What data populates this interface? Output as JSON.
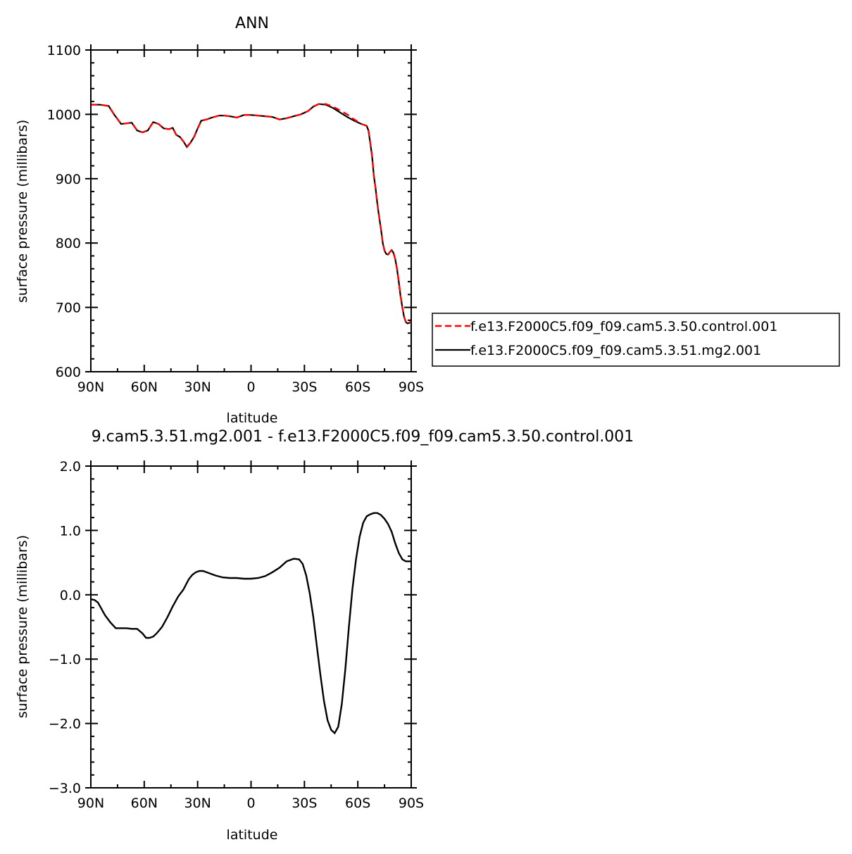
{
  "chart_data": [
    {
      "type": "line",
      "title": "ANN",
      "xlabel": "latitude",
      "ylabel": "surface pressure (millibars)",
      "xlim": [
        -90,
        90
      ],
      "ylim": [
        600,
        1100
      ],
      "xticks": [
        -90,
        -60,
        -30,
        0,
        30,
        60,
        90
      ],
      "xtick_labels": [
        "90N",
        "60N",
        "30N",
        "0",
        "30S",
        "60S",
        "90S"
      ],
      "yticks": [
        600,
        700,
        800,
        900,
        1000,
        1100
      ],
      "ytick_labels": [
        "600",
        "700",
        "800",
        "900",
        "1000",
        "1100"
      ],
      "legend_position": "right",
      "series": [
        {
          "name": "f.e13.F2000C5.f09_f09.cam5.3.50.control.001",
          "color": "#ff0000",
          "dash": "dashed",
          "x": [
            -90,
            -85,
            -80,
            -77,
            -73,
            -70,
            -67,
            -64,
            -61,
            -58,
            -55,
            -52,
            -49,
            -46,
            -44,
            -42,
            -40,
            -38,
            -36,
            -34,
            -32,
            -30,
            -28,
            -25,
            -22,
            -18,
            -15,
            -12,
            -8,
            -4,
            0,
            4,
            8,
            12,
            16,
            20,
            24,
            28,
            32,
            35,
            38,
            42,
            46,
            50,
            54,
            58,
            62,
            64,
            65,
            66,
            67,
            68,
            69,
            70,
            71,
            72,
            73,
            74,
            75,
            76,
            77,
            78,
            79,
            80,
            81,
            82,
            83,
            84,
            85,
            86,
            87,
            88,
            89,
            90
          ],
          "y": [
            1015,
            1015,
            1013,
            1000,
            985,
            986,
            987,
            975,
            972,
            975,
            988,
            985,
            978,
            977,
            979,
            968,
            965,
            958,
            950,
            956,
            965,
            978,
            990,
            992,
            995,
            998,
            998,
            997,
            995,
            999,
            999,
            998,
            997,
            996,
            992,
            994,
            997,
            1000,
            1005,
            1012,
            1016,
            1016,
            1012,
            1006,
            1000,
            992,
            985,
            983,
            982,
            975,
            955,
            935,
            905,
            885,
            860,
            840,
            822,
            800,
            788,
            783,
            782,
            786,
            789,
            785,
            775,
            760,
            740,
            718,
            700,
            685,
            677,
            675,
            676,
            678
          ]
        },
        {
          "name": "f.e13.F2000C5.f09_f09.cam5.3.51.mg2.001",
          "color": "#000000",
          "dash": "solid",
          "x": [
            -90,
            -85,
            -80,
            -77,
            -73,
            -70,
            -67,
            -64,
            -61,
            -58,
            -55,
            -52,
            -49,
            -46,
            -44,
            -42,
            -40,
            -38,
            -36,
            -34,
            -32,
            -30,
            -28,
            -25,
            -22,
            -18,
            -15,
            -12,
            -8,
            -4,
            0,
            4,
            8,
            12,
            16,
            20,
            24,
            28,
            32,
            35,
            38,
            42,
            46,
            50,
            54,
            58,
            62,
            64,
            65,
            66,
            67,
            68,
            69,
            70,
            71,
            72,
            73,
            74,
            75,
            76,
            77,
            78,
            79,
            80,
            81,
            82,
            83,
            84,
            85,
            86,
            87,
            88,
            89,
            90
          ],
          "y": [
            1015,
            1015,
            1013,
            1000,
            985,
            986,
            987,
            975,
            972,
            975,
            988,
            985,
            978,
            977,
            979,
            968,
            965,
            958,
            949,
            956,
            965,
            978,
            990,
            992,
            995,
            998,
            998,
            997,
            995,
            999,
            999,
            998,
            997,
            996,
            992,
            994,
            997,
            1000,
            1005,
            1012,
            1016,
            1015,
            1010,
            1003,
            996,
            990,
            985,
            983,
            982,
            975,
            955,
            935,
            905,
            885,
            860,
            840,
            822,
            800,
            788,
            783,
            782,
            786,
            789,
            785,
            775,
            760,
            740,
            718,
            700,
            685,
            677,
            675,
            676,
            678
          ]
        }
      ]
    },
    {
      "type": "line",
      "title": "9.cam5.3.51.mg2.001 - f.e13.F2000C5.f09_f09.cam5.3.50.control.001",
      "xlabel": "latitude",
      "ylabel": "surface pressure (millibars)",
      "xlim": [
        -90,
        90
      ],
      "ylim": [
        -3.0,
        2.0
      ],
      "xticks": [
        -90,
        -60,
        -30,
        0,
        30,
        60,
        90
      ],
      "xtick_labels": [
        "90N",
        "60N",
        "30N",
        "0",
        "30S",
        "60S",
        "90S"
      ],
      "yticks": [
        -3.0,
        -2.0,
        -1.0,
        0.0,
        1.0,
        2.0
      ],
      "ytick_labels": [
        "−3.0",
        "−2.0",
        "−1.0",
        "0.0",
        "1.0",
        "2.0"
      ],
      "series": [
        {
          "color": "#000000",
          "dash": "solid",
          "x": [
            -90,
            -88,
            -86,
            -84,
            -82,
            -79,
            -76,
            -73,
            -70,
            -67,
            -64,
            -61,
            -59,
            -57,
            -55,
            -53,
            -50,
            -47,
            -44,
            -41,
            -38,
            -35,
            -33,
            -31,
            -29,
            -27,
            -25,
            -23,
            -20,
            -16,
            -12,
            -8,
            -4,
            0,
            4,
            8,
            12,
            16,
            20,
            24,
            27,
            29,
            31,
            33,
            35,
            37,
            39,
            41,
            43,
            45,
            47,
            49,
            51,
            53,
            55,
            57,
            59,
            61,
            63,
            65,
            67,
            69,
            71,
            73,
            75,
            77,
            79,
            81,
            83,
            85,
            87,
            89,
            90
          ],
          "y": [
            -0.07,
            -0.08,
            -0.12,
            -0.22,
            -0.32,
            -0.43,
            -0.52,
            -0.52,
            -0.52,
            -0.53,
            -0.53,
            -0.6,
            -0.67,
            -0.67,
            -0.65,
            -0.6,
            -0.5,
            -0.35,
            -0.18,
            -0.03,
            0.08,
            0.24,
            0.31,
            0.35,
            0.37,
            0.37,
            0.35,
            0.33,
            0.3,
            0.27,
            0.26,
            0.26,
            0.25,
            0.25,
            0.26,
            0.29,
            0.35,
            0.42,
            0.52,
            0.56,
            0.55,
            0.48,
            0.3,
            0.02,
            -0.35,
            -0.8,
            -1.25,
            -1.65,
            -1.95,
            -2.1,
            -2.15,
            -2.05,
            -1.7,
            -1.15,
            -0.5,
            0.1,
            0.55,
            0.9,
            1.12,
            1.22,
            1.25,
            1.27,
            1.27,
            1.24,
            1.18,
            1.1,
            0.98,
            0.8,
            0.65,
            0.55,
            0.52,
            0.52,
            0.52
          ]
        }
      ]
    }
  ]
}
